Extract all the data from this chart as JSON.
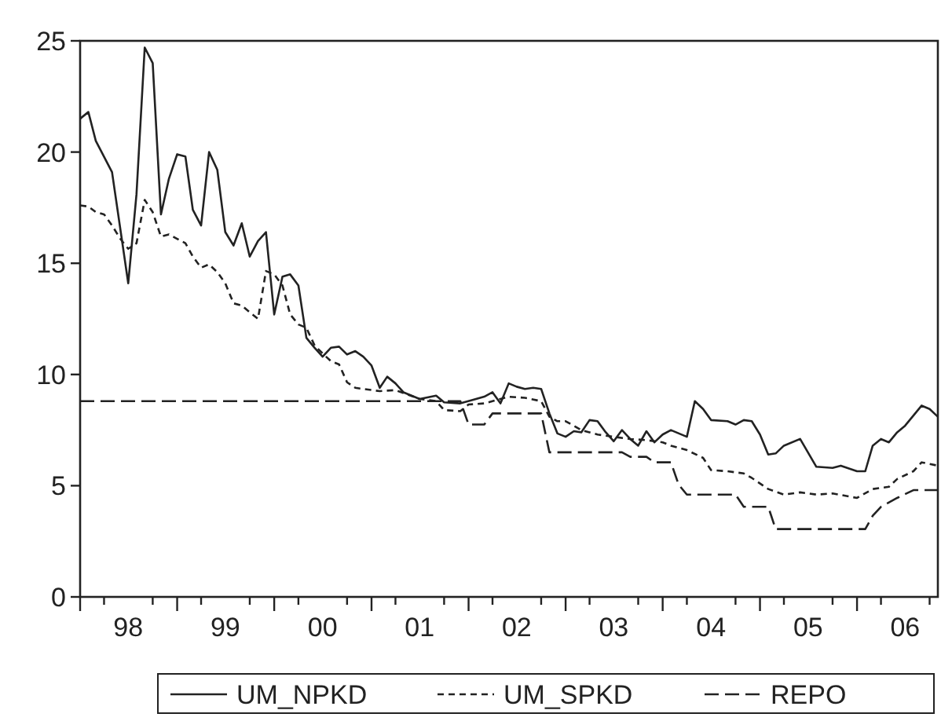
{
  "chart_data": {
    "type": "line",
    "xlim": [
      "1998-01",
      "2006-11"
    ],
    "ylim": [
      0,
      25
    ],
    "yticks": [
      0,
      5,
      10,
      15,
      20,
      25
    ],
    "xticks": [
      {
        "value": "1998-01",
        "label": null
      },
      {
        "value": "1998-04",
        "label": null
      },
      {
        "value": "1998-07",
        "label": "98"
      },
      {
        "value": "1998-10",
        "label": null
      },
      {
        "value": "1999-01",
        "label": null
      },
      {
        "value": "1999-04",
        "label": null
      },
      {
        "value": "1999-07",
        "label": "99"
      },
      {
        "value": "1999-10",
        "label": null
      },
      {
        "value": "2000-01",
        "label": null
      },
      {
        "value": "2000-04",
        "label": null
      },
      {
        "value": "2000-07",
        "label": "00"
      },
      {
        "value": "2000-10",
        "label": null
      },
      {
        "value": "2001-01",
        "label": null
      },
      {
        "value": "2001-04",
        "label": null
      },
      {
        "value": "2001-07",
        "label": "01"
      },
      {
        "value": "2001-10",
        "label": null
      },
      {
        "value": "2002-01",
        "label": null
      },
      {
        "value": "2002-04",
        "label": null
      },
      {
        "value": "2002-07",
        "label": "02"
      },
      {
        "value": "2002-10",
        "label": null
      },
      {
        "value": "2003-01",
        "label": null
      },
      {
        "value": "2003-04",
        "label": null
      },
      {
        "value": "2003-07",
        "label": "03"
      },
      {
        "value": "2003-10",
        "label": null
      },
      {
        "value": "2004-01",
        "label": null
      },
      {
        "value": "2004-04",
        "label": null
      },
      {
        "value": "2004-07",
        "label": "04"
      },
      {
        "value": "2004-10",
        "label": null
      },
      {
        "value": "2005-01",
        "label": null
      },
      {
        "value": "2005-04",
        "label": null
      },
      {
        "value": "2005-07",
        "label": "05"
      },
      {
        "value": "2005-10",
        "label": null
      },
      {
        "value": "2006-01",
        "label": null
      },
      {
        "value": "2006-04",
        "label": null
      },
      {
        "value": "2006-07",
        "label": "06"
      },
      {
        "value": "2006-10",
        "label": null
      }
    ],
    "grid": false,
    "legend": "bottom",
    "marker": "none",
    "series": [
      {
        "name": "UM_NPKD",
        "color": "#222222",
        "line_style": "solid",
        "x": [
          "1998-01",
          "1998-02",
          "1998-03",
          "1998-05",
          "1998-07",
          "1998-08",
          "1998-09",
          "1998-10",
          "1998-11",
          "1998-12",
          "1999-01",
          "1999-02",
          "1999-03",
          "1999-04",
          "1999-05",
          "1999-06",
          "1999-07",
          "1999-08",
          "1999-09",
          "1999-10",
          "1999-11",
          "1999-12",
          "2000-01",
          "2000-02",
          "2000-03",
          "2000-04",
          "2000-05",
          "2000-06",
          "2000-07",
          "2000-08",
          "2000-09",
          "2000-10",
          "2000-11",
          "2000-12",
          "2001-01",
          "2001-02",
          "2001-03",
          "2001-04",
          "2001-05",
          "2001-07",
          "2001-09",
          "2001-10",
          "2001-12",
          "2002-03",
          "2002-04",
          "2002-05",
          "2002-06",
          "2002-07",
          "2002-08",
          "2002-09",
          "2002-10",
          "2002-11",
          "2002-12",
          "2003-01",
          "2003-02",
          "2003-03",
          "2003-04",
          "2003-05",
          "2003-06",
          "2003-07",
          "2003-08",
          "2003-09",
          "2003-10",
          "2003-11",
          "2003-12",
          "2004-01",
          "2004-02",
          "2004-04",
          "2004-05",
          "2004-06",
          "2004-07",
          "2004-09",
          "2004-10",
          "2004-11",
          "2004-12",
          "2005-01",
          "2005-02",
          "2005-03",
          "2005-04",
          "2005-06",
          "2005-08",
          "2005-10",
          "2005-11",
          "2006-01",
          "2006-02",
          "2006-03",
          "2006-04",
          "2006-05",
          "2006-06",
          "2006-07",
          "2006-09",
          "2006-10",
          "2006-11"
        ],
        "values": [
          21.5,
          21.8,
          20.5,
          19.1,
          14.1,
          18.1,
          24.7,
          24.0,
          17.2,
          18.8,
          19.9,
          19.8,
          17.4,
          16.7,
          20.0,
          19.2,
          16.4,
          15.8,
          16.8,
          15.3,
          16.0,
          16.4,
          12.7,
          14.4,
          14.5,
          14.0,
          11.65,
          11.2,
          10.8,
          11.2,
          11.25,
          10.9,
          11.05,
          10.8,
          10.4,
          9.4,
          9.9,
          9.6,
          9.2,
          8.9,
          9.05,
          8.75,
          8.7,
          9.0,
          9.2,
          8.7,
          9.6,
          9.45,
          9.35,
          9.4,
          9.35,
          8.25,
          7.35,
          7.2,
          7.45,
          7.4,
          7.95,
          7.9,
          7.4,
          7.0,
          7.5,
          7.1,
          6.8,
          7.45,
          6.95,
          7.3,
          7.5,
          7.2,
          8.8,
          8.45,
          7.95,
          7.9,
          7.75,
          7.95,
          7.9,
          7.3,
          6.4,
          6.45,
          6.8,
          7.1,
          5.85,
          5.8,
          5.9,
          5.65,
          5.65,
          6.8,
          7.1,
          6.95,
          7.4,
          7.7,
          8.6,
          8.45,
          8.1
        ]
      },
      {
        "name": "UM_SPKD",
        "color": "#222222",
        "line_style": "dotted",
        "x": [
          "1998-01",
          "1998-02",
          "1998-03",
          "1998-04",
          "1998-05",
          "1998-06",
          "1998-07",
          "1998-08",
          "1998-09",
          "1998-10",
          "1998-11",
          "1998-12",
          "1999-01",
          "1999-02",
          "1999-03",
          "1999-04",
          "1999-05",
          "1999-06",
          "1999-07",
          "1999-08",
          "1999-09",
          "1999-10",
          "1999-11",
          "1999-12",
          "2000-01",
          "2000-02",
          "2000-03",
          "2000-04",
          "2000-05",
          "2000-06",
          "2000-07",
          "2000-08",
          "2000-09",
          "2000-10",
          "2000-11",
          "2001-02",
          "2001-04",
          "2001-07",
          "2001-09",
          "2001-10",
          "2001-12",
          "2002-01",
          "2002-03",
          "2002-04",
          "2002-06",
          "2002-08",
          "2002-10",
          "2002-11",
          "2002-12",
          "2003-01",
          "2003-03",
          "2003-04",
          "2003-05",
          "2003-07",
          "2003-09",
          "2003-11",
          "2004-01",
          "2004-02",
          "2004-04",
          "2004-06",
          "2004-07",
          "2004-09",
          "2004-11",
          "2004-12",
          "2005-02",
          "2005-04",
          "2005-06",
          "2005-08",
          "2005-10",
          "2006-01",
          "2006-03",
          "2006-05",
          "2006-06",
          "2006-08",
          "2006-09",
          "2006-11"
        ],
        "values": [
          17.6,
          17.55,
          17.3,
          17.2,
          16.7,
          16.1,
          15.65,
          15.9,
          17.85,
          17.3,
          16.2,
          16.3,
          16.1,
          15.9,
          15.3,
          14.8,
          14.95,
          14.6,
          14.1,
          13.2,
          13.1,
          12.8,
          12.5,
          14.65,
          14.5,
          14.0,
          12.7,
          12.25,
          12.1,
          11.3,
          10.95,
          10.6,
          10.45,
          9.65,
          9.4,
          9.25,
          9.3,
          8.9,
          8.8,
          8.4,
          8.35,
          8.65,
          8.7,
          8.8,
          9.0,
          8.95,
          8.8,
          8.1,
          7.9,
          7.9,
          7.5,
          7.4,
          7.3,
          7.2,
          7.1,
          7.05,
          6.95,
          6.8,
          6.6,
          6.25,
          5.7,
          5.65,
          5.55,
          5.35,
          4.85,
          4.6,
          4.7,
          4.6,
          4.65,
          4.45,
          4.85,
          4.95,
          5.3,
          5.65,
          6.05,
          5.9
        ]
      },
      {
        "name": "REPO",
        "color": "#222222",
        "line_style": "dashed",
        "x": [
          "1998-01",
          "2001-12",
          "2002-01",
          "2002-03",
          "2002-04",
          "2002-10",
          "2002-11",
          "2003-08",
          "2003-09",
          "2003-11",
          "2003-12",
          "2004-02",
          "2004-03",
          "2004-04",
          "2004-10",
          "2004-11",
          "2005-02",
          "2005-03",
          "2006-02",
          "2006-03",
          "2006-04",
          "2006-06",
          "2006-08",
          "2006-11"
        ],
        "values": [
          8.8,
          8.8,
          7.75,
          7.75,
          8.25,
          8.25,
          6.5,
          6.5,
          6.3,
          6.3,
          6.05,
          6.05,
          5.05,
          4.6,
          4.6,
          4.05,
          4.05,
          3.05,
          3.05,
          3.65,
          4.05,
          4.45,
          4.8,
          4.8
        ]
      }
    ]
  }
}
